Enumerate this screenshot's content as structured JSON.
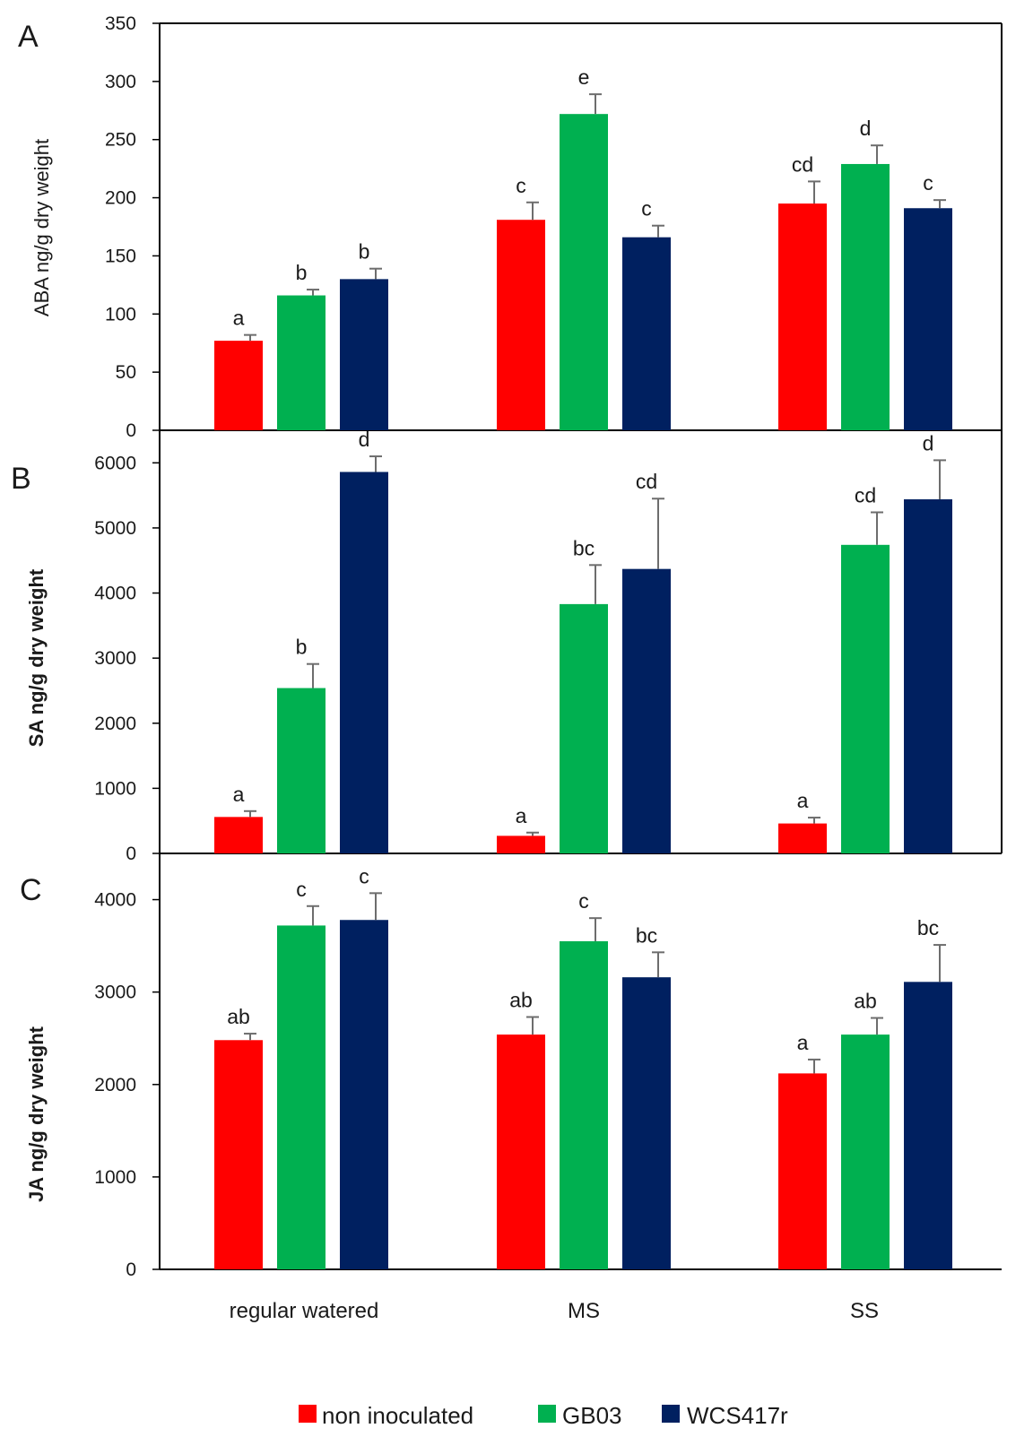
{
  "chart_data": [
    {
      "type": "bar",
      "panel": "A",
      "ylabel": "ABA ng/g dry weight",
      "ylim": [
        0,
        350
      ],
      "yticks": [
        0,
        50,
        100,
        150,
        200,
        250,
        300,
        350
      ],
      "categories": [
        "regular watered",
        "MS",
        "SS"
      ],
      "series": [
        {
          "name": "non inoculated",
          "values": [
            77,
            181,
            195
          ],
          "errors": [
            5,
            15,
            19
          ],
          "labels": [
            "a",
            "c",
            "cd"
          ]
        },
        {
          "name": "GB03",
          "values": [
            116,
            272,
            229
          ],
          "errors": [
            5,
            17,
            16
          ],
          "labels": [
            "b",
            "e",
            "d"
          ]
        },
        {
          "name": "WCS417r",
          "values": [
            130,
            166,
            191
          ],
          "errors": [
            9,
            10,
            7
          ],
          "labels": [
            "b",
            "c",
            "c"
          ]
        }
      ]
    },
    {
      "type": "bar",
      "panel": "B",
      "ylabel": "SA ng/g dry weight",
      "ylim": [
        0,
        6500
      ],
      "yticks": [
        0,
        1000,
        2000,
        3000,
        4000,
        5000,
        6000
      ],
      "categories": [
        "regular watered",
        "MS",
        "SS"
      ],
      "series": [
        {
          "name": "non inoculated",
          "values": [
            560,
            270,
            460
          ],
          "errors": [
            90,
            50,
            90
          ],
          "labels": [
            "a",
            "a",
            "a"
          ]
        },
        {
          "name": "GB03",
          "values": [
            2540,
            3830,
            4740
          ],
          "errors": [
            370,
            600,
            500
          ],
          "labels": [
            "b",
            "bc",
            "cd"
          ]
        },
        {
          "name": "WCS417r",
          "values": [
            5860,
            4370,
            5440
          ],
          "errors": [
            240,
            1080,
            600
          ],
          "labels": [
            "d",
            "cd",
            "d"
          ]
        }
      ]
    },
    {
      "type": "bar",
      "panel": "C",
      "ylabel": "JA ng/g dry weight",
      "ylim": [
        0,
        4500
      ],
      "yticks": [
        0,
        1000,
        2000,
        3000,
        4000
      ],
      "categories": [
        "regular watered",
        "MS",
        "SS"
      ],
      "series": [
        {
          "name": "non inoculated",
          "values": [
            2480,
            2540,
            2120
          ],
          "errors": [
            70,
            190,
            150
          ],
          "labels": [
            "ab",
            "ab",
            "a"
          ]
        },
        {
          "name": "GB03",
          "values": [
            3720,
            3550,
            2540
          ],
          "errors": [
            210,
            250,
            180
          ],
          "labels": [
            "c",
            "c",
            "ab"
          ]
        },
        {
          "name": "WCS417r",
          "values": [
            3780,
            3160,
            3110
          ],
          "errors": [
            290,
            270,
            400
          ],
          "labels": [
            "c",
            "bc",
            "bc"
          ]
        }
      ]
    }
  ],
  "x_categories": [
    "regular watered",
    "MS",
    "SS"
  ],
  "legend": [
    {
      "label": "non inoculated",
      "color": "#ff0000"
    },
    {
      "label": "GB03",
      "color": "#00b050"
    },
    {
      "label": "WCS417r",
      "color": "#002060"
    }
  ],
  "colors": {
    "non_inoculated": "#ff0000",
    "GB03": "#00b050",
    "WCS417r": "#002060",
    "error_bar": "#6d6d6d",
    "axis": "#000000"
  }
}
